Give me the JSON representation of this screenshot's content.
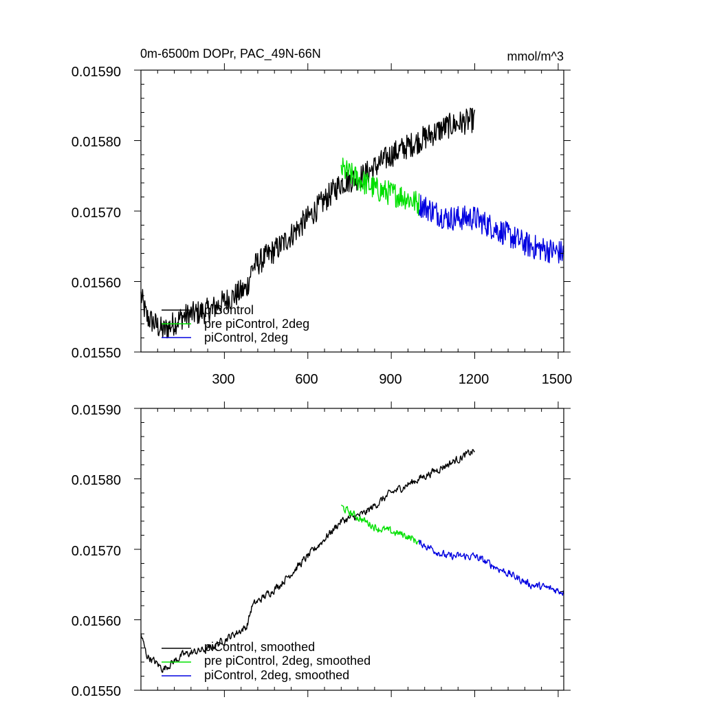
{
  "chart_data": [
    {
      "type": "line",
      "title_left": "0m-6500m DOPr, PAC_49N-66N",
      "title_right": "mmol/m^3",
      "xlabel": "",
      "ylabel": "",
      "xlim": [
        0,
        1520
      ],
      "ylim": [
        0.0155,
        0.0159
      ],
      "x_ticks": [
        300,
        600,
        900,
        1200,
        1500
      ],
      "x_tick_labels": [
        "300",
        "600",
        "900",
        "1200",
        "1500"
      ],
      "y_ticks": [
        0.0155,
        0.0156,
        0.0157,
        0.0158,
        0.0159
      ],
      "y_tick_labels": [
        "0.01550",
        "0.01560",
        "0.01570",
        "0.01580",
        "0.01590"
      ],
      "grid": false,
      "legend_position": "bottom-left",
      "noise_amplitude": 1.8e-05,
      "series": [
        {
          "name": "piControl",
          "color": "#000000",
          "x": [
            0,
            20,
            80,
            150,
            250,
            380,
            400,
            500,
            600,
            720,
            800,
            900,
            1000,
            1100,
            1200
          ],
          "y": [
            0.01558,
            0.01555,
            0.01553,
            0.01555,
            0.01556,
            0.01559,
            0.01562,
            0.01565,
            0.01569,
            0.01574,
            0.01575,
            0.01578,
            0.0158,
            0.01582,
            0.01583
          ]
        },
        {
          "name": "pre piControl, 2deg",
          "color": "#00e000",
          "x": [
            720,
            760,
            850,
            950,
            1000
          ],
          "y": [
            0.01576,
            0.01575,
            0.01573,
            0.01572,
            0.01571
          ]
        },
        {
          "name": "piControl, 2deg",
          "color": "#0000e0",
          "x": [
            1000,
            1100,
            1200,
            1300,
            1400,
            1520
          ],
          "y": [
            0.01571,
            0.01569,
            0.01569,
            0.01567,
            0.01565,
            0.01564
          ]
        }
      ]
    },
    {
      "type": "line",
      "title_left": "",
      "title_right": "",
      "xlabel": "",
      "ylabel": "",
      "xlim": [
        0,
        1520
      ],
      "ylim": [
        0.0155,
        0.0159
      ],
      "x_ticks": [
        300,
        600,
        900,
        1200,
        1500
      ],
      "x_tick_labels": [],
      "y_ticks": [
        0.0155,
        0.0156,
        0.0157,
        0.0158,
        0.0159
      ],
      "y_tick_labels": [
        "0.01550",
        "0.01560",
        "0.01570",
        "0.01580",
        "0.01590"
      ],
      "grid": false,
      "legend_position": "bottom-left",
      "noise_amplitude": 9e-06,
      "series": [
        {
          "name": "piControl, smoothed",
          "color": "#000000",
          "x": [
            0,
            20,
            80,
            150,
            250,
            380,
            400,
            500,
            600,
            720,
            800,
            900,
            1000,
            1100,
            1200
          ],
          "y": [
            0.01558,
            0.01555,
            0.01553,
            0.01555,
            0.01556,
            0.01559,
            0.01562,
            0.01565,
            0.01569,
            0.01574,
            0.01575,
            0.01578,
            0.0158,
            0.01582,
            0.01584
          ]
        },
        {
          "name": "pre piControl, 2deg, smoothed",
          "color": "#00e000",
          "x": [
            720,
            760,
            850,
            950,
            1000
          ],
          "y": [
            0.01576,
            0.01575,
            0.01573,
            0.01572,
            0.01571
          ]
        },
        {
          "name": "piControl, 2deg, smoothed",
          "color": "#0000e0",
          "x": [
            1000,
            1100,
            1200,
            1300,
            1400,
            1520
          ],
          "y": [
            0.01571,
            0.01569,
            0.01569,
            0.01567,
            0.01565,
            0.01564
          ]
        }
      ]
    }
  ]
}
